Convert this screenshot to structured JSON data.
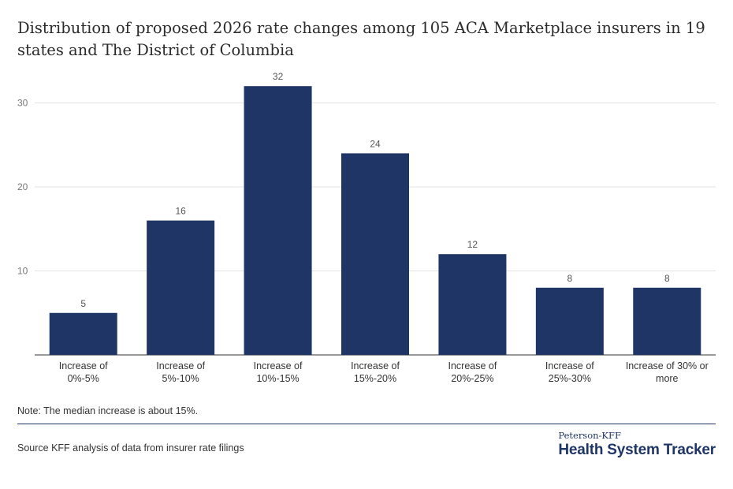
{
  "header": {
    "title": "Distribution of proposed 2026 rate changes among 105 ACA Marketplace insurers in 19 states and The District of Columbia"
  },
  "chart_data": {
    "type": "bar",
    "categories": [
      [
        "Increase of",
        "0%-5%"
      ],
      [
        "Increase of",
        "5%-10%"
      ],
      [
        "Increase of",
        "10%-15%"
      ],
      [
        "Increase of",
        "15%-20%"
      ],
      [
        "Increase of",
        "20%-25%"
      ],
      [
        "Increase of",
        "25%-30%"
      ],
      [
        "Increase of 30% or",
        "more"
      ]
    ],
    "values": [
      5,
      16,
      32,
      24,
      12,
      8,
      8
    ],
    "ylim": [
      0,
      32
    ],
    "yticks": [
      "10",
      "20",
      "30"
    ],
    "grid": true,
    "bar_color": "#1f3566",
    "xlabel": "",
    "ylabel": ""
  },
  "footer": {
    "note": "Note: The median increase is about 15%.",
    "source": "Source KFF analysis of data from insurer rate filings",
    "logo_top": "Peterson-KFF",
    "logo_main": "Health System Tracker"
  }
}
